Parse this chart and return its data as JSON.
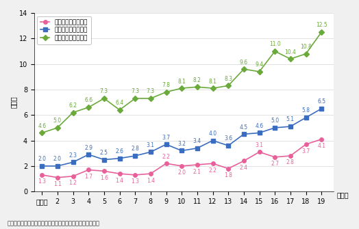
{
  "xlabel_suffix": "（年）",
  "ylabel": "（％）",
  "note": "（備考）　厚生労働省「賃金構造基本統計調査」より作成。",
  "x_labels": [
    "平成元",
    "2",
    "3",
    "4",
    "5",
    "6",
    "7",
    "8",
    "9",
    "10",
    "11",
    "12",
    "13",
    "14",
    "15",
    "16",
    "17",
    "18",
    "19"
  ],
  "x_values": [
    1,
    2,
    3,
    4,
    5,
    6,
    7,
    8,
    9,
    10,
    11,
    12,
    13,
    14,
    15,
    16,
    17,
    18,
    19
  ],
  "series": [
    {
      "label": "民間企業の部長相当",
      "color": "#e8609a",
      "marker": "o",
      "values": [
        1.3,
        1.1,
        1.2,
        1.7,
        1.6,
        1.4,
        1.3,
        1.4,
        2.2,
        2.0,
        2.1,
        2.2,
        1.8,
        2.4,
        3.1,
        2.7,
        2.8,
        3.7,
        4.1
      ],
      "label_above": [
        false,
        false,
        false,
        false,
        false,
        false,
        false,
        false,
        true,
        false,
        false,
        false,
        false,
        false,
        true,
        false,
        false,
        false,
        false
      ]
    },
    {
      "label": "民間企業の課長相当",
      "color": "#3a6dbf",
      "marker": "s",
      "values": [
        2.0,
        2.0,
        2.3,
        2.9,
        2.5,
        2.6,
        2.8,
        3.1,
        3.7,
        3.2,
        3.4,
        4.0,
        3.6,
        4.5,
        4.6,
        5.0,
        5.1,
        5.8,
        6.5
      ],
      "label_above": [
        true,
        true,
        true,
        true,
        true,
        true,
        true,
        true,
        true,
        true,
        true,
        true,
        true,
        true,
        true,
        true,
        true,
        true,
        true
      ]
    },
    {
      "label": "民間企業の係長相当",
      "color": "#6aaa3a",
      "marker": "D",
      "values": [
        4.6,
        5.0,
        6.2,
        6.6,
        7.3,
        6.4,
        7.3,
        7.3,
        7.8,
        8.1,
        8.2,
        8.1,
        8.3,
        9.6,
        9.4,
        11.0,
        10.4,
        10.8,
        12.5
      ],
      "label_above": [
        true,
        true,
        true,
        true,
        true,
        true,
        true,
        true,
        true,
        true,
        true,
        true,
        true,
        true,
        true,
        true,
        true,
        true,
        true
      ]
    }
  ],
  "ylim": [
    0,
    14
  ],
  "yticks": [
    0,
    2,
    4,
    6,
    8,
    10,
    12,
    14
  ],
  "background_color": "#f0f0f0",
  "plot_bg_color": "#ffffff",
  "label_fontsize": 5.5,
  "tick_fontsize": 7,
  "legend_fontsize": 6.5,
  "note_fontsize": 6,
  "linewidth": 1.2,
  "markersize": 4
}
